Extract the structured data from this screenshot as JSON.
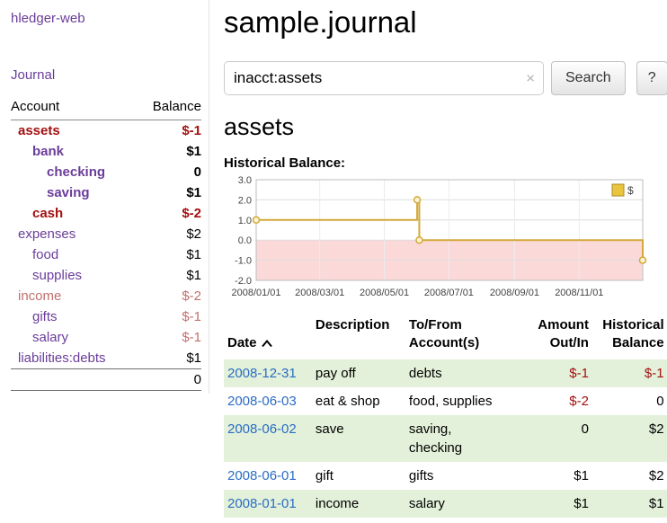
{
  "colors": {
    "link_purple": "#6a3d9a",
    "negative_red": "#a40f0f",
    "negative_soft": "#c0706e",
    "date_link_blue": "#2a6cc4",
    "row_stripe_green": "#e3f1da",
    "chart_line_gold": "#d4a93a",
    "chart_marker_fill": "#fcf3d2",
    "chart_negative_pink": "#fbd9d9",
    "legend_gold_fill": "#e9c53f",
    "legend_gold_border": "#ab8a24"
  },
  "app": {
    "title": "hledger-web"
  },
  "sidebar": {
    "journal_link": "Journal",
    "header": {
      "account": "Account",
      "balance": "Balance"
    },
    "accounts": [
      {
        "name": "assets",
        "indent": 0,
        "bold": true,
        "name_style": "neg",
        "balance": "$-1",
        "balance_style": "neg"
      },
      {
        "name": "bank",
        "indent": 1,
        "bold": true,
        "name_style": "",
        "balance": "$1",
        "balance_style": ""
      },
      {
        "name": "checking",
        "indent": 2,
        "bold": true,
        "name_style": "",
        "balance": "0",
        "balance_style": ""
      },
      {
        "name": "saving",
        "indent": 2,
        "bold": true,
        "name_style": "",
        "balance": "$1",
        "balance_style": ""
      },
      {
        "name": "cash",
        "indent": 1,
        "bold": true,
        "name_style": "neg",
        "balance": "$-2",
        "balance_style": "neg"
      },
      {
        "name": "expenses",
        "indent": 0,
        "bold": false,
        "name_style": "",
        "balance": "$2",
        "balance_style": ""
      },
      {
        "name": "food",
        "indent": 1,
        "bold": false,
        "name_style": "",
        "balance": "$1",
        "balance_style": ""
      },
      {
        "name": "supplies",
        "indent": 1,
        "bold": false,
        "name_style": "",
        "balance": "$1",
        "balance_style": ""
      },
      {
        "name": "income",
        "indent": 0,
        "bold": false,
        "name_style": "neg-light",
        "balance": "$-2",
        "balance_style": "neg-light"
      },
      {
        "name": "gifts",
        "indent": 1,
        "bold": false,
        "name_style": "",
        "balance": "$-1",
        "balance_style": "neg-light"
      },
      {
        "name": "salary",
        "indent": 1,
        "bold": false,
        "name_style": "",
        "balance": "$-1",
        "balance_style": "neg-light"
      },
      {
        "name": "liabilities:debts",
        "indent": 0,
        "bold": false,
        "name_style": "",
        "balance": "$1",
        "balance_style": ""
      }
    ],
    "total": "0"
  },
  "main": {
    "title": "sample.journal",
    "search": {
      "value": "inacct:assets",
      "clear_icon": "×",
      "button": "Search",
      "help_button": "?"
    },
    "account_heading": "assets",
    "chart_label": "Historical Balance:"
  },
  "chart_data": {
    "type": "line",
    "step": true,
    "title": "Historical Balance:",
    "legend": [
      {
        "label": "$"
      }
    ],
    "legend_position": "top-right",
    "grid": true,
    "ylim": [
      -2,
      3
    ],
    "yticks": [
      3,
      2,
      1,
      0,
      -1,
      -2
    ],
    "xticks": [
      "2008/01/01",
      "2008/03/01",
      "2008/05/01",
      "2008/07/01",
      "2008/09/01",
      "2008/11/01"
    ],
    "x_start": "2008/01/01",
    "x_end": "2008/12/31",
    "series": [
      {
        "name": "$",
        "points": [
          {
            "x": "2008/01/01",
            "y": 1
          },
          {
            "x": "2008/06/01",
            "y": 2
          },
          {
            "x": "2008/06/03",
            "y": 0
          },
          {
            "x": "2008/12/31",
            "y": -1
          }
        ]
      }
    ]
  },
  "register": {
    "headers": [
      "Date",
      "Description",
      "To/From\nAccount(s)",
      "Amount\nOut/In",
      "Historical\nBalance"
    ],
    "rows": [
      {
        "date": "2008-12-31",
        "description": "pay off",
        "accounts": [
          "debts"
        ],
        "amount": "$-1",
        "amount_neg": true,
        "balance": "$-1",
        "balance_neg": true
      },
      {
        "date": "2008-06-03",
        "description": "eat & shop",
        "accounts": [
          "food, supplies"
        ],
        "amount": "$-2",
        "amount_neg": true,
        "balance": "0",
        "balance_neg": false
      },
      {
        "date": "2008-06-02",
        "description": "save",
        "accounts": [
          "saving,",
          "checking"
        ],
        "amount": "0",
        "amount_neg": false,
        "balance": "$2",
        "balance_neg": false
      },
      {
        "date": "2008-06-01",
        "description": "gift",
        "accounts": [
          "gifts"
        ],
        "amount": "$1",
        "amount_neg": false,
        "balance": "$2",
        "balance_neg": false
      },
      {
        "date": "2008-01-01",
        "description": "income",
        "accounts": [
          "salary"
        ],
        "amount": "$1",
        "amount_neg": false,
        "balance": "$1",
        "balance_neg": false
      }
    ]
  }
}
